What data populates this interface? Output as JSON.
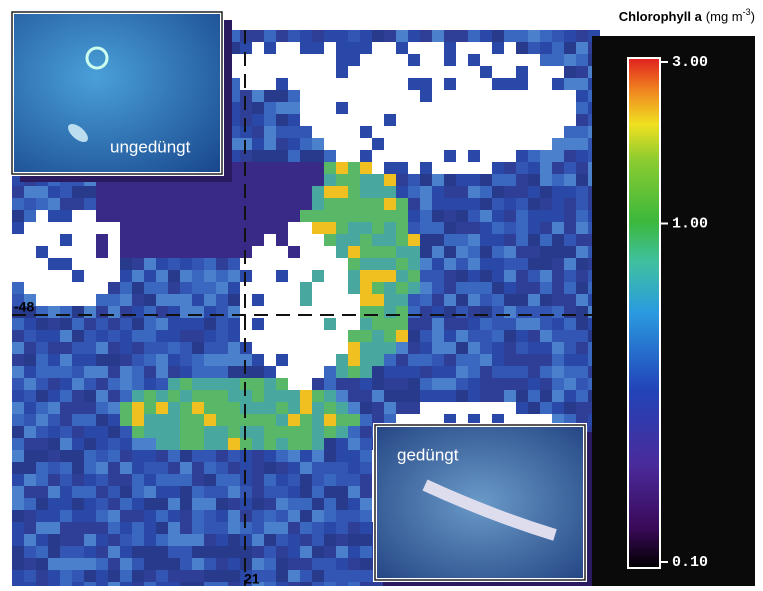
{
  "title": {
    "name": "Chlorophyll a",
    "unit_prefix": "(mg m",
    "unit_exponent": "-3",
    "unit_suffix": ")"
  },
  "colorbar": {
    "scale": "log",
    "lim": [
      0.1,
      3
    ],
    "ticks": [
      {
        "value": 3,
        "label": "3.00"
      },
      {
        "value": 1,
        "label": "1.00"
      },
      {
        "value": 0.1,
        "label": "0.10"
      }
    ]
  },
  "map": {
    "latitude_label": -48,
    "longitude_label": 21
  },
  "insets": [
    {
      "label": "ungedüngt"
    },
    {
      "label": "gedüngt"
    }
  ]
}
